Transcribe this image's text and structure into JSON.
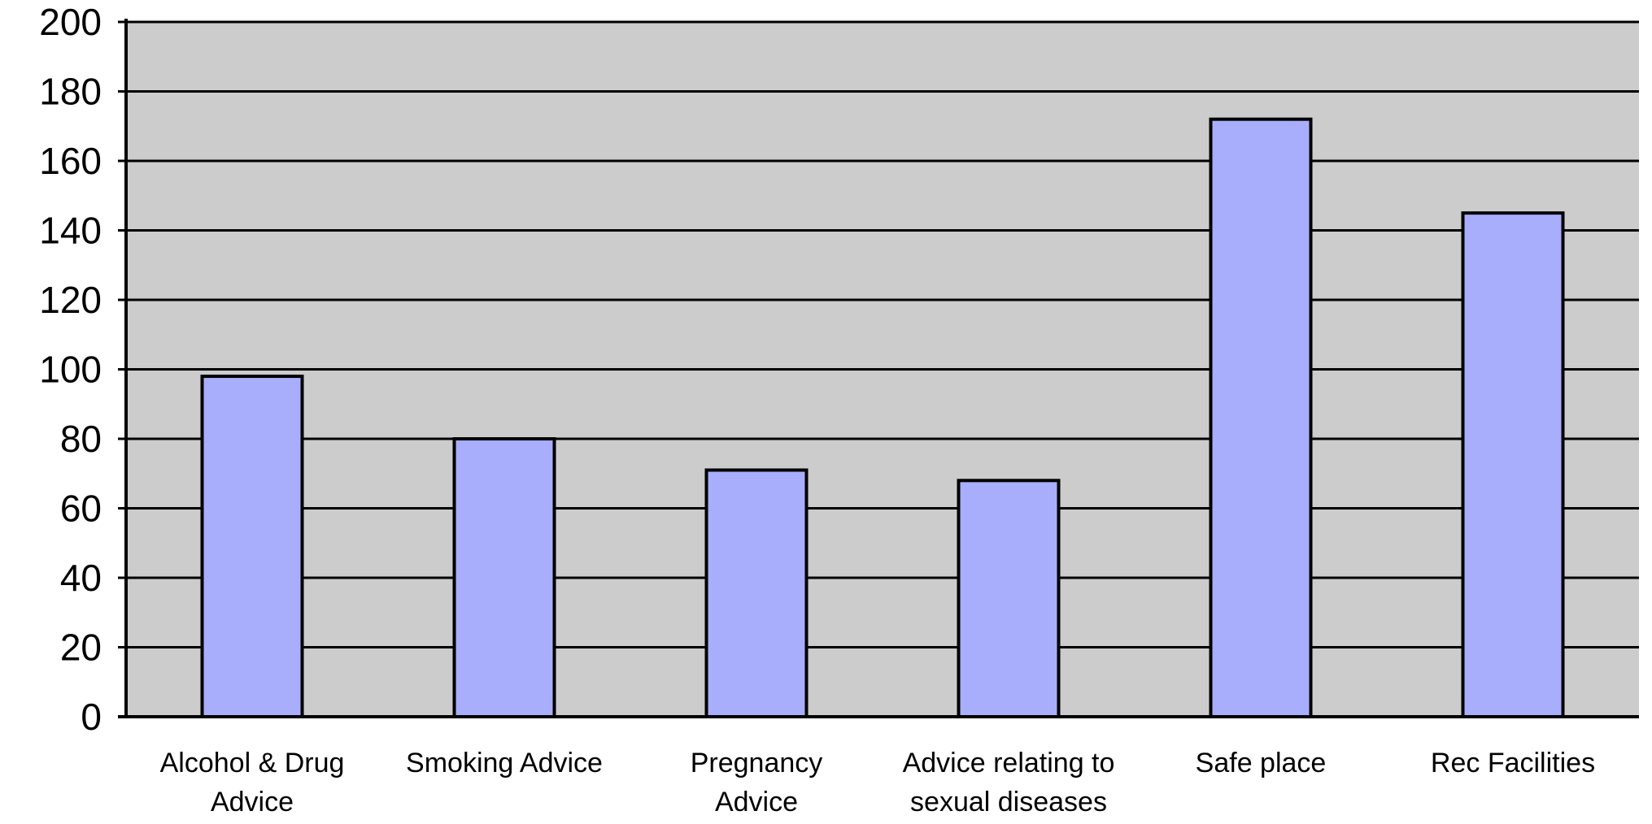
{
  "chart_data": {
    "type": "bar",
    "title": "",
    "xlabel": "",
    "ylabel": "",
    "ylim": [
      0,
      200
    ],
    "yticks": [
      0,
      20,
      40,
      60,
      80,
      100,
      120,
      140,
      160,
      180,
      200
    ],
    "grid": true,
    "legend": "none",
    "categories": [
      [
        "Alcohol & Drug",
        "Advice"
      ],
      [
        "Smoking Advice"
      ],
      [
        "Pregnancy",
        "Advice"
      ],
      [
        "Advice relating to",
        "sexual diseases"
      ],
      [
        "Safe place"
      ],
      [
        "Rec Facilities"
      ]
    ],
    "series": [
      {
        "values": [
          98,
          80,
          71,
          68,
          172,
          145
        ]
      }
    ],
    "colors": {
      "plot_background": "#cccccc",
      "bar_fill": "#a8aefc",
      "bar_stroke": "#000000",
      "grid": "#000000",
      "text": "#000000"
    }
  }
}
